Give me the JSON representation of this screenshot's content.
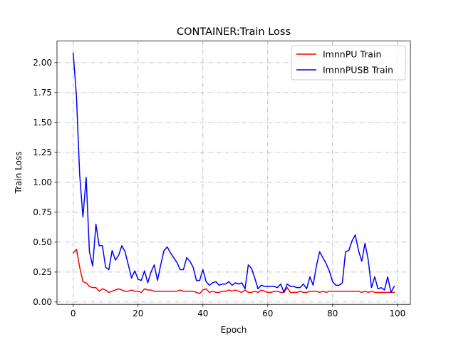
{
  "chart_data": {
    "type": "line",
    "title": "CONTAINER:Train Loss",
    "xlabel": "Epoch",
    "ylabel": "Train Loss",
    "xlim": [
      -5,
      104
    ],
    "ylim": [
      -0.02,
      2.18
    ],
    "xticks": [
      0,
      20,
      40,
      60,
      80,
      100
    ],
    "yticks": [
      0.0,
      0.25,
      0.5,
      0.75,
      1.0,
      1.25,
      1.5,
      1.75,
      2.0
    ],
    "ytick_labels": [
      "0.00",
      "0.25",
      "0.50",
      "0.75",
      "1.00",
      "1.25",
      "1.50",
      "1.75",
      "2.00"
    ],
    "grid": true,
    "grid_style": "dash-dot",
    "legend_position": "top-right",
    "series": [
      {
        "name": "ImnnPU Train",
        "color": "#ff0000",
        "x": [
          0,
          1,
          2,
          3,
          4,
          5,
          6,
          7,
          8,
          9,
          10,
          11,
          12,
          13,
          14,
          15,
          16,
          17,
          18,
          19,
          20,
          21,
          22,
          23,
          24,
          25,
          26,
          27,
          28,
          29,
          30,
          31,
          32,
          33,
          34,
          35,
          36,
          37,
          38,
          39,
          40,
          41,
          42,
          43,
          44,
          45,
          46,
          47,
          48,
          49,
          50,
          51,
          52,
          53,
          54,
          55,
          56,
          57,
          58,
          59,
          60,
          61,
          62,
          63,
          64,
          65,
          66,
          67,
          68,
          69,
          70,
          71,
          72,
          73,
          74,
          75,
          76,
          77,
          78,
          79,
          80,
          81,
          82,
          83,
          84,
          85,
          86,
          87,
          88,
          89,
          90,
          91,
          92,
          93,
          94,
          95,
          96,
          97,
          98,
          99
        ],
        "values": [
          0.41,
          0.44,
          0.29,
          0.17,
          0.16,
          0.13,
          0.12,
          0.12,
          0.09,
          0.11,
          0.1,
          0.08,
          0.09,
          0.1,
          0.11,
          0.1,
          0.09,
          0.09,
          0.1,
          0.09,
          0.09,
          0.08,
          0.11,
          0.1,
          0.1,
          0.09,
          0.09,
          0.09,
          0.09,
          0.09,
          0.09,
          0.09,
          0.09,
          0.1,
          0.09,
          0.09,
          0.09,
          0.09,
          0.08,
          0.07,
          0.1,
          0.11,
          0.08,
          0.09,
          0.08,
          0.08,
          0.09,
          0.09,
          0.1,
          0.09,
          0.1,
          0.09,
          0.08,
          0.1,
          0.08,
          0.08,
          0.09,
          0.08,
          0.1,
          0.09,
          0.08,
          0.08,
          0.09,
          0.09,
          0.08,
          0.08,
          0.12,
          0.08,
          0.08,
          0.08,
          0.09,
          0.08,
          0.08,
          0.09,
          0.09,
          0.09,
          0.08,
          0.09,
          0.08,
          0.09,
          0.09,
          0.09,
          0.09,
          0.09,
          0.09,
          0.09,
          0.09,
          0.09,
          0.09,
          0.08,
          0.09,
          0.08,
          0.09,
          0.08,
          0.08,
          0.08,
          0.08,
          0.08,
          0.08,
          0.08
        ]
      },
      {
        "name": "ImnnPUSB Train",
        "color": "#0000ff",
        "x": [
          0,
          1,
          2,
          3,
          4,
          5,
          6,
          7,
          8,
          9,
          10,
          11,
          12,
          13,
          14,
          15,
          16,
          17,
          18,
          19,
          20,
          21,
          22,
          23,
          24,
          25,
          26,
          27,
          28,
          29,
          30,
          31,
          32,
          33,
          34,
          35,
          36,
          37,
          38,
          39,
          40,
          41,
          42,
          43,
          44,
          45,
          46,
          47,
          48,
          49,
          50,
          51,
          52,
          53,
          54,
          55,
          56,
          57,
          58,
          59,
          60,
          61,
          62,
          63,
          64,
          65,
          66,
          67,
          68,
          69,
          70,
          71,
          72,
          73,
          74,
          75,
          76,
          77,
          78,
          79,
          80,
          81,
          82,
          83,
          84,
          85,
          86,
          87,
          88,
          89,
          90,
          91,
          92,
          93,
          94,
          95,
          96,
          97,
          98,
          99
        ],
        "values": [
          2.08,
          1.72,
          1.06,
          0.71,
          1.04,
          0.42,
          0.3,
          0.65,
          0.47,
          0.47,
          0.29,
          0.27,
          0.43,
          0.35,
          0.39,
          0.47,
          0.42,
          0.31,
          0.2,
          0.26,
          0.19,
          0.18,
          0.26,
          0.16,
          0.25,
          0.31,
          0.18,
          0.31,
          0.43,
          0.46,
          0.41,
          0.37,
          0.33,
          0.27,
          0.27,
          0.37,
          0.34,
          0.29,
          0.18,
          0.18,
          0.27,
          0.17,
          0.14,
          0.16,
          0.17,
          0.14,
          0.15,
          0.15,
          0.17,
          0.14,
          0.16,
          0.15,
          0.16,
          0.11,
          0.31,
          0.28,
          0.2,
          0.11,
          0.14,
          0.13,
          0.13,
          0.13,
          0.13,
          0.12,
          0.15,
          0.08,
          0.15,
          0.13,
          0.13,
          0.12,
          0.12,
          0.15,
          0.11,
          0.21,
          0.14,
          0.3,
          0.42,
          0.37,
          0.32,
          0.26,
          0.17,
          0.14,
          0.14,
          0.16,
          0.42,
          0.43,
          0.51,
          0.56,
          0.43,
          0.34,
          0.49,
          0.35,
          0.12,
          0.21,
          0.11,
          0.12,
          0.1,
          0.21,
          0.08,
          0.13
        ]
      }
    ]
  }
}
